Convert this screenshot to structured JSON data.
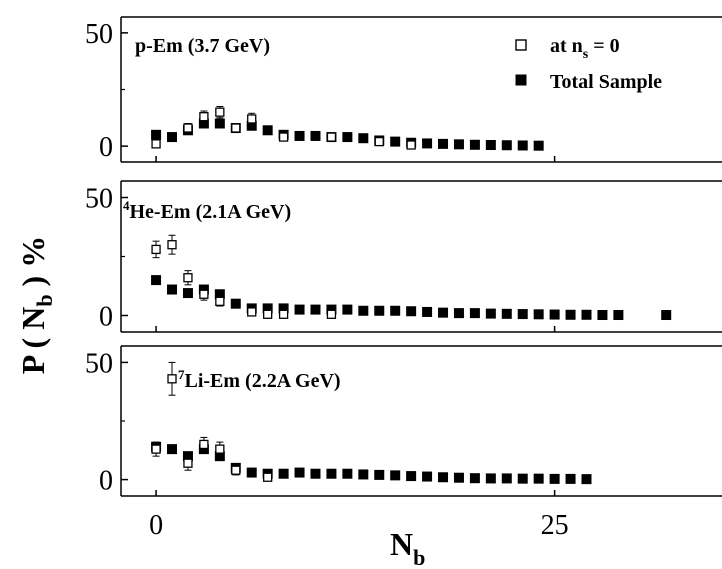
{
  "chart_data": {
    "type": "scatter",
    "xlabel": "N_b",
    "ylabel": "P ( N_b ) %",
    "xlim": [
      -2.2,
      35.5
    ],
    "x_ticks": [
      0,
      25
    ],
    "x_tick_labels": [
      "0",
      "25"
    ],
    "legend": {
      "placement": "top-right of top panel",
      "entries": [
        {
          "marker": "open-square",
          "text_main": "at n",
          "text_sub": "s",
          "text_tail": " = 0"
        },
        {
          "marker": "filled-square",
          "text_main": "Total Sample"
        }
      ]
    },
    "panels": [
      {
        "label": "p-Em (3.7 GeV)",
        "label_sup": "",
        "ylim": [
          -7,
          57
        ],
        "y_ticks": [
          0,
          50
        ],
        "y_tick_labels": [
          "0",
          "50"
        ],
        "series": [
          {
            "marker": "filled-square",
            "x": [
              0,
              1,
              2,
              3,
              4,
              5,
              6,
              7,
              8,
              9,
              10,
              11,
              12,
              13,
              14,
              15,
              16,
              17,
              18,
              19,
              20,
              21,
              22,
              23,
              24
            ],
            "y": [
              5,
              4,
              7,
              10,
              10,
              8,
              9,
              7,
              5,
              4.5,
              4.5,
              4,
              4,
              3.5,
              2.5,
              2,
              1.5,
              1.2,
              1,
              0.8,
              0.6,
              0.5,
              0.4,
              0.3,
              0.2
            ],
            "err": []
          },
          {
            "marker": "open-square",
            "x": [
              0,
              2,
              3,
              4,
              5,
              6,
              8,
              11,
              14,
              16
            ],
            "y": [
              1,
              8,
              13,
              15,
              8,
              12,
              4,
              4,
              2,
              0.5
            ],
            "err": [
              1.5,
              2,
              2.5,
              2.5,
              2,
              2.5,
              1.5,
              1.5,
              1,
              0.5
            ]
          }
        ]
      },
      {
        "label": "He-Em (2.1A GeV)",
        "label_sup": "4",
        "ylim": [
          -7,
          57
        ],
        "y_ticks": [
          0,
          50
        ],
        "y_tick_labels": [
          "0",
          "50"
        ],
        "series": [
          {
            "marker": "filled-square",
            "x": [
              0,
              1,
              2,
              3,
              4,
              5,
              6,
              7,
              8,
              9,
              10,
              11,
              12,
              13,
              14,
              15,
              16,
              17,
              18,
              19,
              20,
              21,
              22,
              23,
              24,
              25,
              26,
              27,
              28,
              29,
              32
            ],
            "y": [
              15,
              11,
              9.5,
              11,
              9,
              5,
              3,
              3,
              3,
              2.5,
              2.5,
              2.5,
              2.5,
              2,
              2,
              2,
              1.8,
              1.5,
              1.2,
              1,
              1,
              0.8,
              0.7,
              0.6,
              0.5,
              0.4,
              0.3,
              0.3,
              0.2,
              0.2,
              0.2
            ],
            "err": []
          },
          {
            "marker": "open-square",
            "x": [
              0,
              1,
              2,
              3,
              4,
              6,
              7,
              8,
              11
            ],
            "y": [
              28,
              30,
              16,
              9,
              6,
              1.5,
              0.5,
              0.5,
              0.5
            ],
            "err": [
              3.5,
              4,
              3,
              2.5,
              2,
              1.5,
              1,
              1,
              1
            ]
          }
        ]
      },
      {
        "label": "Li-Em (2.2A GeV)",
        "label_sup": "7",
        "ylim": [
          -7,
          57
        ],
        "y_ticks": [
          0,
          50
        ],
        "y_tick_labels": [
          "0",
          "50"
        ],
        "series": [
          {
            "marker": "filled-square",
            "x": [
              0,
              1,
              2,
              3,
              4,
              5,
              6,
              7,
              8,
              9,
              10,
              11,
              12,
              13,
              14,
              15,
              16,
              17,
              18,
              19,
              20,
              21,
              22,
              23,
              24,
              25,
              26,
              27
            ],
            "y": [
              14,
              13,
              10,
              13,
              10,
              5,
              3,
              2.5,
              2.5,
              3,
              2.5,
              2.5,
              2.5,
              2.2,
              2,
              1.8,
              1.5,
              1.3,
              1,
              0.8,
              0.6,
              0.5,
              0.5,
              0.4,
              0.4,
              0.3,
              0.3,
              0.2
            ],
            "err": []
          },
          {
            "marker": "open-square",
            "x": [
              0,
              1,
              2,
              3,
              4,
              5,
              7
            ],
            "y": [
              13,
              43,
              7,
              15,
              13,
              4,
              1
            ],
            "err": [
              3,
              7,
              3,
              3,
              3,
              2,
              1
            ]
          }
        ]
      }
    ]
  }
}
